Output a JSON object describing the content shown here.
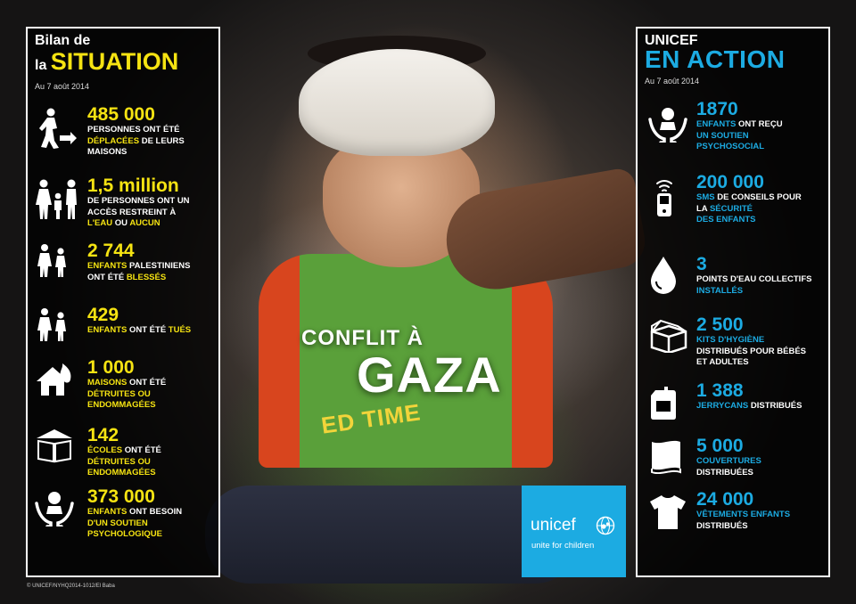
{
  "left_panel": {
    "title_line1": "Bilan de",
    "title_line2_prefix": "la",
    "title_line2_highlight": "SITUATION",
    "date": "Au 7 août 2014",
    "items": [
      {
        "number": "485 000",
        "icon": "displaced-person-icon",
        "parts": [
          [
            "PERSONNES ONT ÉTÉ",
            ""
          ],
          [
            "DÉPLACÉES",
            "y"
          ],
          [
            " DE LEURS",
            ""
          ],
          [
            "MAISONS",
            ""
          ]
        ]
      },
      {
        "number": "1,5 million",
        "icon": "family-icon",
        "parts": [
          [
            "DE PERSONNES ONT UN",
            ""
          ],
          [
            "ACCÈS RESTREINT À",
            ""
          ],
          [
            "L'EAU",
            "y"
          ],
          [
            " OU ",
            ""
          ],
          [
            "AUCUN",
            "y"
          ]
        ]
      },
      {
        "number": "2 744",
        "icon": "children-icon",
        "parts": [
          [
            "ENFANTS",
            "y"
          ],
          [
            " PALESTINIENS",
            ""
          ],
          [
            "ONT ÉTÉ ",
            ""
          ],
          [
            "BLESSÉS",
            "y"
          ]
        ]
      },
      {
        "number": "429",
        "icon": "children-icon",
        "parts": [
          [
            "ENFANTS",
            "y"
          ],
          [
            " ONT ÉTÉ ",
            ""
          ],
          [
            "TUÉS",
            "y"
          ]
        ]
      },
      {
        "number": "1 000",
        "icon": "house-fire-icon",
        "parts": [
          [
            "MAISONS",
            "y"
          ],
          [
            " ONT ÉTÉ",
            ""
          ],
          [
            "DÉTRUITES OU",
            "y"
          ],
          [
            "ENDOMMAGÉES",
            "y"
          ]
        ]
      },
      {
        "number": "142",
        "icon": "school-book-icon",
        "parts": [
          [
            "ÉCOLES",
            "y"
          ],
          [
            " ONT ÉTÉ",
            ""
          ],
          [
            "DÉTRUITES OU",
            "y"
          ],
          [
            "ENDOMMAGÉES",
            "y"
          ]
        ]
      },
      {
        "number": "373 000",
        "icon": "psychosocial-support-icon",
        "parts": [
          [
            "ENFANTS",
            "y"
          ],
          [
            " ONT BESOIN",
            ""
          ],
          [
            "D'UN SOUTIEN",
            "y"
          ],
          [
            "PSYCHOLOGIQUE",
            "y"
          ]
        ]
      }
    ]
  },
  "right_panel": {
    "title_line1": "UNICEF",
    "title_line2": "EN ACTION",
    "date": "Au 7 août 2014",
    "items": [
      {
        "number": "1870",
        "icon": "psychosocial-support-icon",
        "parts": [
          [
            "ENFANTS",
            "b"
          ],
          [
            " ONT REÇU",
            ""
          ],
          [
            "UN SOUTIEN",
            "b"
          ],
          [
            "PSYCHOSOCIAL",
            "b"
          ]
        ]
      },
      {
        "number": "200 000",
        "icon": "mobile-phone-icon",
        "parts": [
          [
            "SMS",
            "b"
          ],
          [
            " DE CONSEILS POUR",
            ""
          ],
          [
            "LA ",
            ""
          ],
          [
            "SÉCURITÉ",
            "b"
          ],
          [
            "DES ENFANTS",
            "b"
          ]
        ]
      },
      {
        "number": "3",
        "icon": "water-drop-icon",
        "parts": [
          [
            "POINTS D'EAU COLLECTIFS",
            ""
          ],
          [
            "INSTALLÉS",
            "b"
          ]
        ]
      },
      {
        "number": "2 500",
        "icon": "hygiene-kit-icon",
        "parts": [
          [
            "KITS D'HYGIÈNE",
            "b"
          ],
          [
            "DISTRIBUÉS POUR BÉBÉS",
            ""
          ],
          [
            "ET ADULTES",
            ""
          ]
        ]
      },
      {
        "number": "1 388",
        "icon": "jerrycan-icon",
        "parts": [
          [
            "JERRYCANS",
            "b"
          ],
          [
            " DISTRIBUÉS",
            ""
          ]
        ]
      },
      {
        "number": "5 000",
        "icon": "blanket-icon",
        "parts": [
          [
            "COUVERTURES",
            "b"
          ],
          [
            "DISTRIBUÉES",
            ""
          ]
        ]
      },
      {
        "number": "24 000",
        "icon": "tshirt-icon",
        "parts": [
          [
            "VÊTEMENTS ENFANTS",
            "b"
          ],
          [
            "DISTRIBUÉS",
            ""
          ]
        ]
      }
    ]
  },
  "center": {
    "headline_small": "CONFLIT À",
    "headline_big": "GAZA",
    "shirt_print": "ED TIME"
  },
  "logo": {
    "name": "unicef",
    "tagline": "unite for children"
  },
  "credit": "© UNICEF/NYHQ2014-1012/El Baba",
  "colors": {
    "yellow": "#f5e312",
    "blue": "#1cabe2"
  }
}
